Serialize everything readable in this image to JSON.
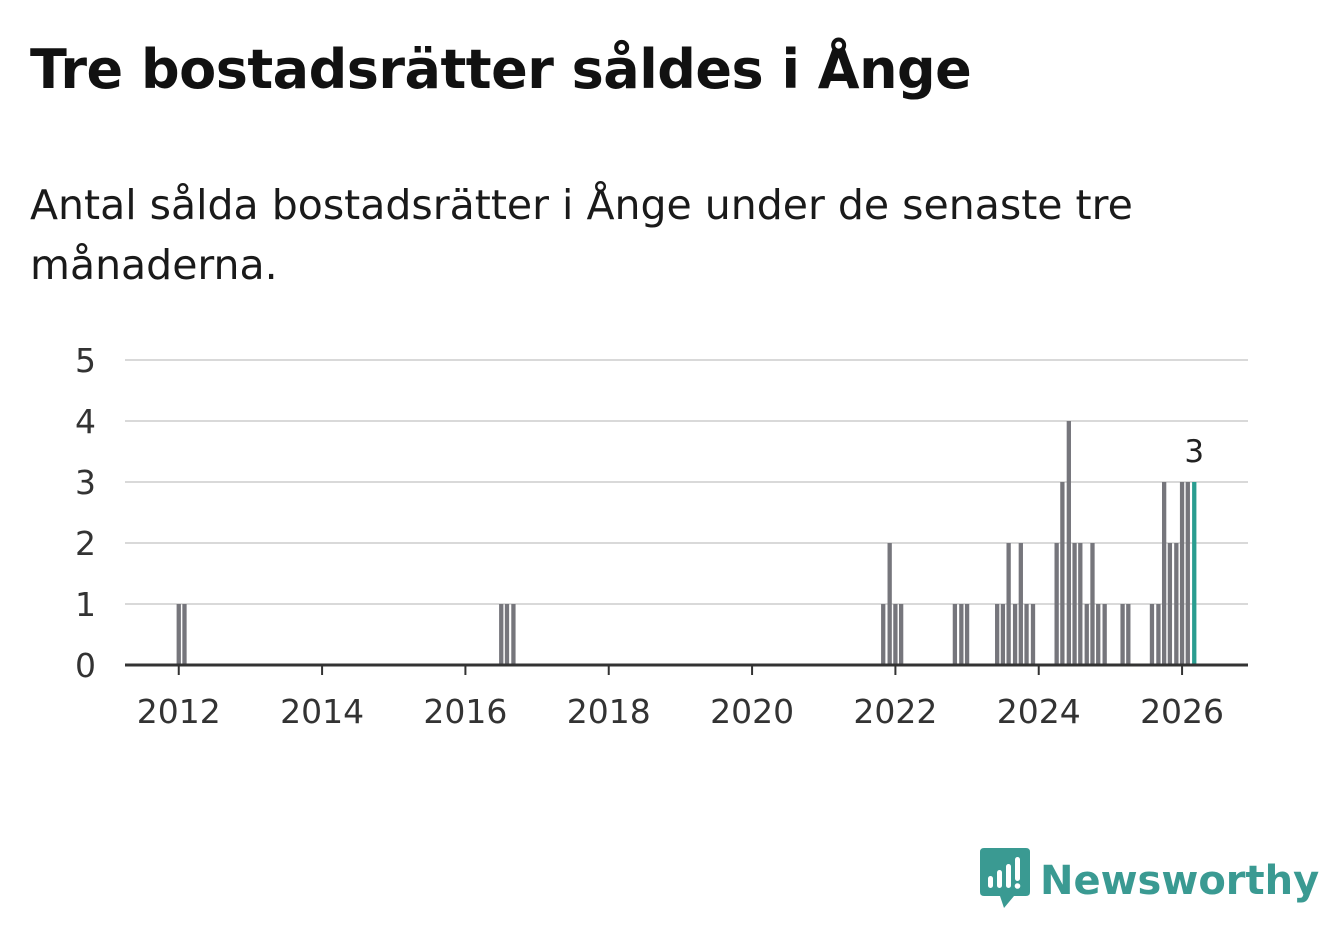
{
  "title": "Tre bostadsrätter såldes i Ånge",
  "subtitle": "Antal sålda bostadsrätter i Ånge under de senaste tre månaderna.",
  "brand": {
    "name": "Newsworthy",
    "color": "#3a9a92",
    "icon": "newsworthy-logo-icon"
  },
  "colors": {
    "bar": "#76767c",
    "highlight": "#2a9d90",
    "grid": "#d9d9d9",
    "axis": "#333333"
  },
  "chart_data": {
    "type": "bar",
    "title": "Tre bostadsrätter såldes i Ånge",
    "xlabel": "",
    "ylabel": "",
    "ylim": [
      0,
      5
    ],
    "yticks": [
      0,
      1,
      2,
      3,
      4,
      5
    ],
    "xlim": [
      2011.25,
      2026.92
    ],
    "xticks": [
      2012,
      2014,
      2016,
      2018,
      2020,
      2022,
      2024,
      2026
    ],
    "bar_width_years": 0.06,
    "points": [
      {
        "t": 2012.0,
        "v": 1
      },
      {
        "t": 2012.08,
        "v": 1
      },
      {
        "t": 2016.5,
        "v": 1
      },
      {
        "t": 2016.58,
        "v": 1
      },
      {
        "t": 2016.67,
        "v": 1
      },
      {
        "t": 2021.83,
        "v": 1
      },
      {
        "t": 2021.92,
        "v": 2
      },
      {
        "t": 2022.0,
        "v": 1
      },
      {
        "t": 2022.08,
        "v": 1
      },
      {
        "t": 2022.83,
        "v": 1
      },
      {
        "t": 2022.92,
        "v": 1
      },
      {
        "t": 2023.0,
        "v": 1
      },
      {
        "t": 2023.42,
        "v": 1
      },
      {
        "t": 2023.5,
        "v": 1
      },
      {
        "t": 2023.58,
        "v": 2
      },
      {
        "t": 2023.67,
        "v": 1
      },
      {
        "t": 2023.75,
        "v": 2
      },
      {
        "t": 2023.83,
        "v": 1
      },
      {
        "t": 2023.92,
        "v": 1
      },
      {
        "t": 2024.25,
        "v": 2
      },
      {
        "t": 2024.33,
        "v": 3
      },
      {
        "t": 2024.42,
        "v": 4
      },
      {
        "t": 2024.5,
        "v": 2
      },
      {
        "t": 2024.58,
        "v": 2
      },
      {
        "t": 2024.67,
        "v": 1
      },
      {
        "t": 2024.75,
        "v": 2
      },
      {
        "t": 2024.83,
        "v": 1
      },
      {
        "t": 2024.92,
        "v": 1
      },
      {
        "t": 2025.17,
        "v": 1
      },
      {
        "t": 2025.25,
        "v": 1
      },
      {
        "t": 2025.58,
        "v": 1
      },
      {
        "t": 2025.67,
        "v": 1
      },
      {
        "t": 2025.75,
        "v": 3
      },
      {
        "t": 2025.83,
        "v": 2
      },
      {
        "t": 2025.92,
        "v": 2
      },
      {
        "t": 2026.0,
        "v": 3
      },
      {
        "t": 2026.08,
        "v": 3
      },
      {
        "t": 2026.17,
        "v": 3,
        "highlight": true
      }
    ],
    "annotation": {
      "text": "3",
      "t": 2026.17,
      "v": 3
    }
  }
}
